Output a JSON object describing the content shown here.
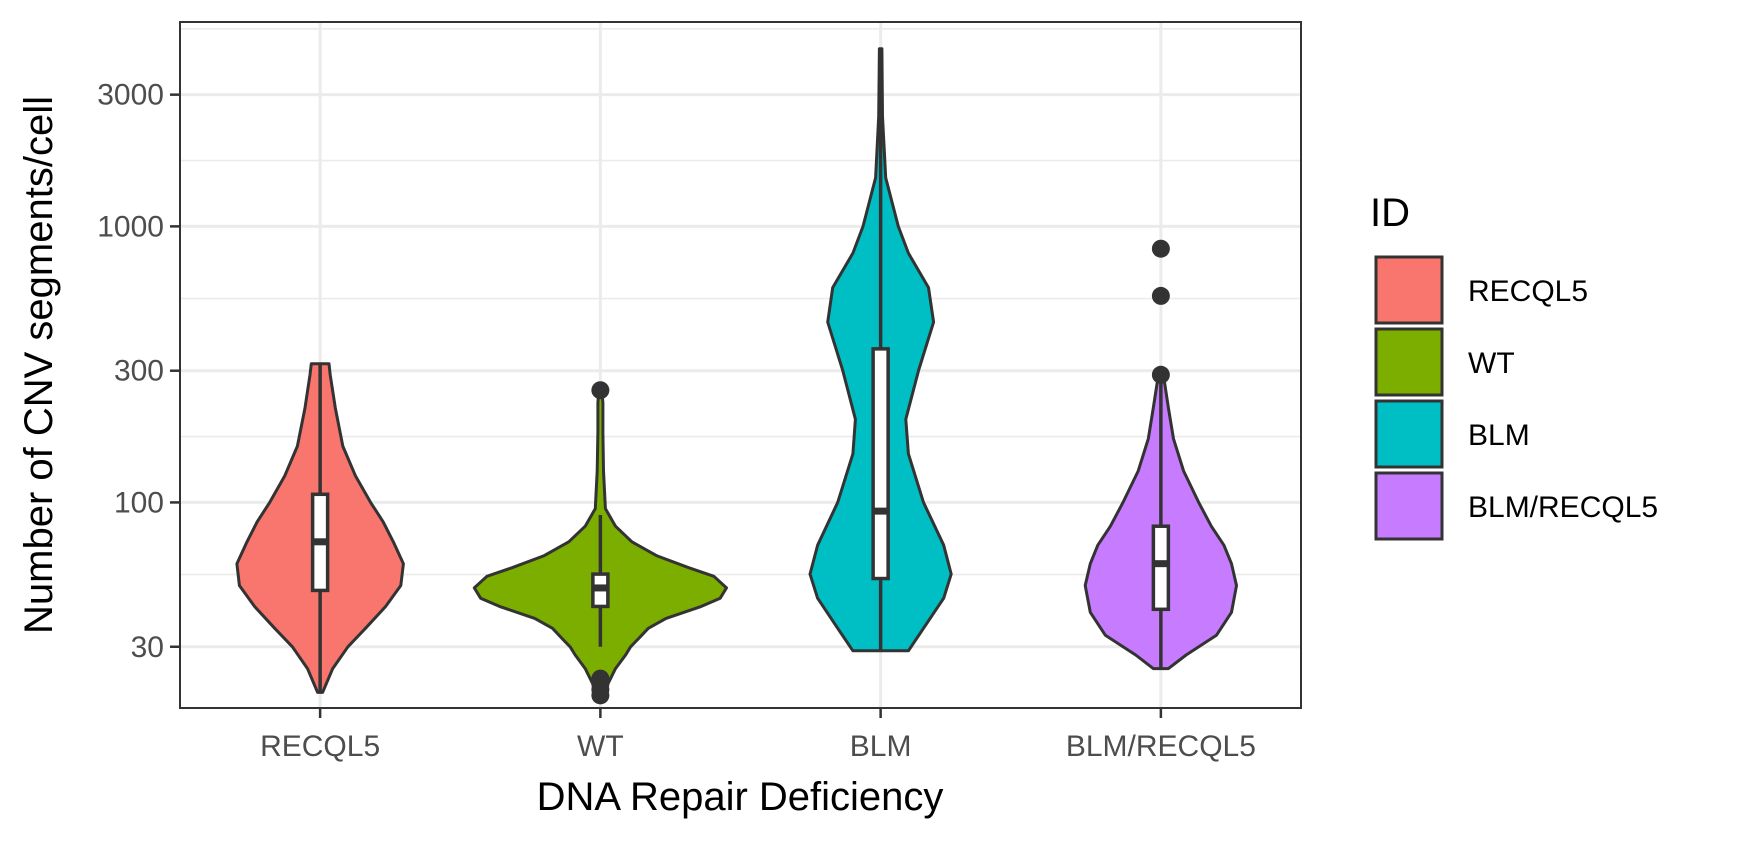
{
  "chart_data": {
    "type": "violin",
    "xlabel": "DNA Repair Deficiency",
    "ylabel": "Number of CNV segments/cell",
    "y_scale": "log10",
    "ylim": [
      18,
      5500
    ],
    "y_ticks": [
      30,
      100,
      300,
      1000,
      3000
    ],
    "y_tick_labels": [
      "30",
      "100",
      "300",
      "1000",
      "3000"
    ],
    "categories": [
      "RECQL5",
      "WT",
      "BLM",
      "BLM/RECQL5"
    ],
    "grid": true,
    "legend": {
      "title": "ID",
      "position": "right",
      "entries": [
        "RECQL5",
        "WT",
        "BLM",
        "BLM/RECQL5"
      ]
    },
    "series": [
      {
        "category": "RECQL5",
        "color": "#F8766D",
        "min": 20.5,
        "q1": 48,
        "median": 72,
        "q3": 107,
        "max": 318,
        "outliers": [],
        "density": [
          [
            20.5,
            0.02
          ],
          [
            25,
            0.1
          ],
          [
            30,
            0.22
          ],
          [
            35,
            0.36
          ],
          [
            42,
            0.52
          ],
          [
            50,
            0.64
          ],
          [
            60,
            0.66
          ],
          [
            72,
            0.58
          ],
          [
            85,
            0.5
          ],
          [
            100,
            0.4
          ],
          [
            125,
            0.28
          ],
          [
            160,
            0.18
          ],
          [
            220,
            0.12
          ],
          [
            290,
            0.08
          ],
          [
            318,
            0.07
          ]
        ]
      },
      {
        "category": "WT",
        "color": "#7CAE00",
        "min": 30,
        "q1": 42,
        "median": 49,
        "q3": 55,
        "max": 90,
        "outliers": [
          20,
          21,
          22,
          23,
          255
        ],
        "density": [
          [
            19,
            0.02
          ],
          [
            22,
            0.06
          ],
          [
            25,
            0.12
          ],
          [
            28,
            0.2
          ],
          [
            30,
            0.24
          ],
          [
            32,
            0.3
          ],
          [
            35,
            0.38
          ],
          [
            38,
            0.52
          ],
          [
            42,
            0.8
          ],
          [
            45,
            0.95
          ],
          [
            49,
            1.0
          ],
          [
            54,
            0.9
          ],
          [
            58,
            0.7
          ],
          [
            64,
            0.45
          ],
          [
            72,
            0.25
          ],
          [
            82,
            0.12
          ],
          [
            95,
            0.04
          ],
          [
            130,
            0.025
          ],
          [
            180,
            0.02
          ],
          [
            230,
            0.02
          ],
          [
            258,
            0.01
          ]
        ]
      },
      {
        "category": "BLM",
        "color": "#00BFC4",
        "min": 29,
        "q1": 53,
        "median": 93,
        "q3": 360,
        "max": 4400,
        "outliers": [],
        "density": [
          [
            29,
            0.22
          ],
          [
            35,
            0.34
          ],
          [
            45,
            0.5
          ],
          [
            55,
            0.56
          ],
          [
            70,
            0.5
          ],
          [
            100,
            0.34
          ],
          [
            150,
            0.22
          ],
          [
            200,
            0.2
          ],
          [
            300,
            0.3
          ],
          [
            450,
            0.42
          ],
          [
            600,
            0.38
          ],
          [
            800,
            0.22
          ],
          [
            1000,
            0.14
          ],
          [
            1500,
            0.04
          ],
          [
            2500,
            0.015
          ],
          [
            4400,
            0.01
          ]
        ]
      },
      {
        "category": "BLM/RECQL5",
        "color": "#C77CFF",
        "min": 25,
        "q1": 41,
        "median": 60,
        "q3": 82,
        "max": 290,
        "outliers": [
          290,
          560,
          830
        ],
        "density": [
          [
            25,
            0.06
          ],
          [
            28,
            0.2
          ],
          [
            33,
            0.44
          ],
          [
            40,
            0.56
          ],
          [
            50,
            0.6
          ],
          [
            60,
            0.56
          ],
          [
            70,
            0.5
          ],
          [
            82,
            0.4
          ],
          [
            100,
            0.3
          ],
          [
            130,
            0.18
          ],
          [
            170,
            0.1
          ],
          [
            220,
            0.06
          ],
          [
            290,
            0.02
          ]
        ]
      }
    ]
  }
}
